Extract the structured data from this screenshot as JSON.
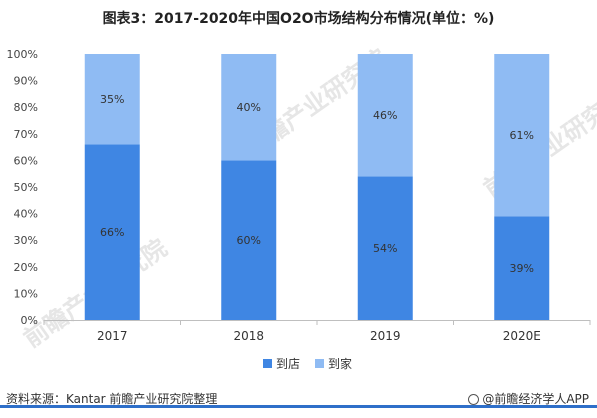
{
  "title": "图表3：2017-2020年中国O2O市场结构分布情况(单位：%)",
  "source": "资料来源：Kantar 前瞻产业研究院整理",
  "brand": "@前瞻经济学人APP",
  "watermark": "前瞻产业研究院",
  "colors": {
    "series1": "#3f86e3",
    "series2": "#8fbbf3",
    "axis": "#bfbfbf",
    "footer": "#2e6fc9"
  },
  "chart_data": {
    "type": "bar",
    "stacked": true,
    "categories": [
      "2017",
      "2018",
      "2019",
      "2020E"
    ],
    "series": [
      {
        "name": "到店",
        "values": [
          66,
          60,
          54,
          39
        ]
      },
      {
        "name": "到家",
        "values": [
          35,
          40,
          46,
          61
        ]
      }
    ],
    "value_labels": [
      [
        "66%",
        "60%",
        "54%",
        "39%"
      ],
      [
        "35%",
        "40%",
        "46%",
        "61%"
      ]
    ],
    "ylim": [
      0,
      100
    ],
    "yticks": [
      "0%",
      "10%",
      "20%",
      "30%",
      "40%",
      "50%",
      "60%",
      "70%",
      "80%",
      "90%",
      "100%"
    ],
    "legend_position": "bottom",
    "grid": false
  }
}
